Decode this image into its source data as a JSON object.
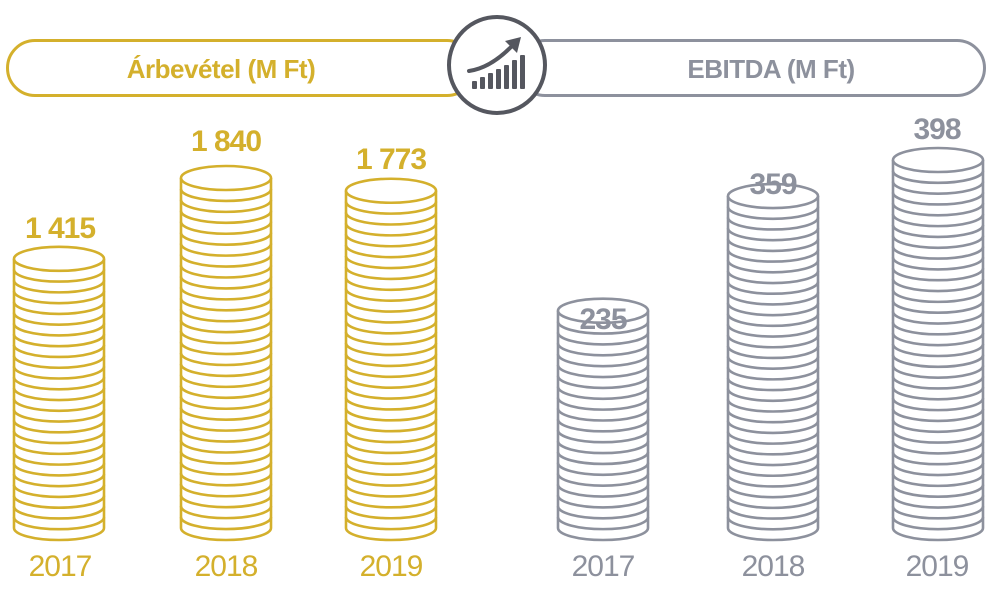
{
  "header": {
    "left_title": "Árbevétel (M Ft)",
    "right_title": "EBITDA (M Ft)",
    "center_icon": "growth-chart-icon"
  },
  "colors": {
    "revenue": "#d4b02c",
    "ebitda": "#8d919d",
    "badge": "#55575f"
  },
  "chart_data": [
    {
      "type": "bar",
      "title": "Árbevétel (M Ft)",
      "categories": [
        "2017",
        "2018",
        "2019"
      ],
      "values": [
        1415,
        1840,
        1773
      ],
      "value_labels": [
        "1 415",
        "1 840",
        "1 773"
      ],
      "xlabel": "",
      "ylabel": "",
      "grid": false,
      "style": "coin-stack"
    },
    {
      "type": "bar",
      "title": "EBITDA (M Ft)",
      "categories": [
        "2017",
        "2018",
        "2019"
      ],
      "values": [
        235,
        359,
        398
      ],
      "value_labels": [
        "235",
        "359",
        "398"
      ],
      "xlabel": "",
      "ylabel": "",
      "grid": false,
      "style": "coin-stack"
    }
  ]
}
